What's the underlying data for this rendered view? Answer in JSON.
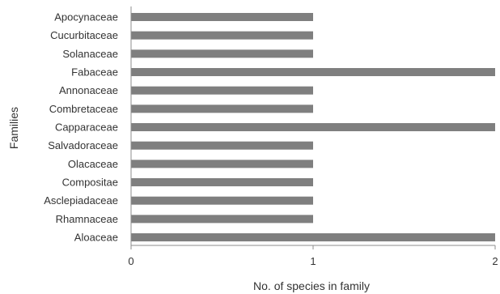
{
  "chart_data": {
    "type": "bar",
    "orientation": "horizontal",
    "title": "",
    "xlabel": "No. of species in family",
    "ylabel": "Families",
    "xlim": [
      0,
      2
    ],
    "xticks": [
      "0",
      "1",
      "2"
    ],
    "grid": false,
    "categories": [
      "Apocynaceae",
      "Cucurbitaceae",
      "Solanaceae",
      "Fabaceae",
      "Annonaceae",
      "Combretaceae",
      "Capparaceae",
      "Salvadoraceae",
      "Olacaceae",
      "Compositae",
      "Asclepiadaceae",
      "Rhamnaceae",
      "Aloaceae"
    ],
    "values": [
      1,
      1,
      1,
      2,
      1,
      1,
      2,
      1,
      1,
      1,
      1,
      1,
      2
    ],
    "bar_color": "#7f7f7f",
    "axis_color": "#8c8c8c"
  }
}
